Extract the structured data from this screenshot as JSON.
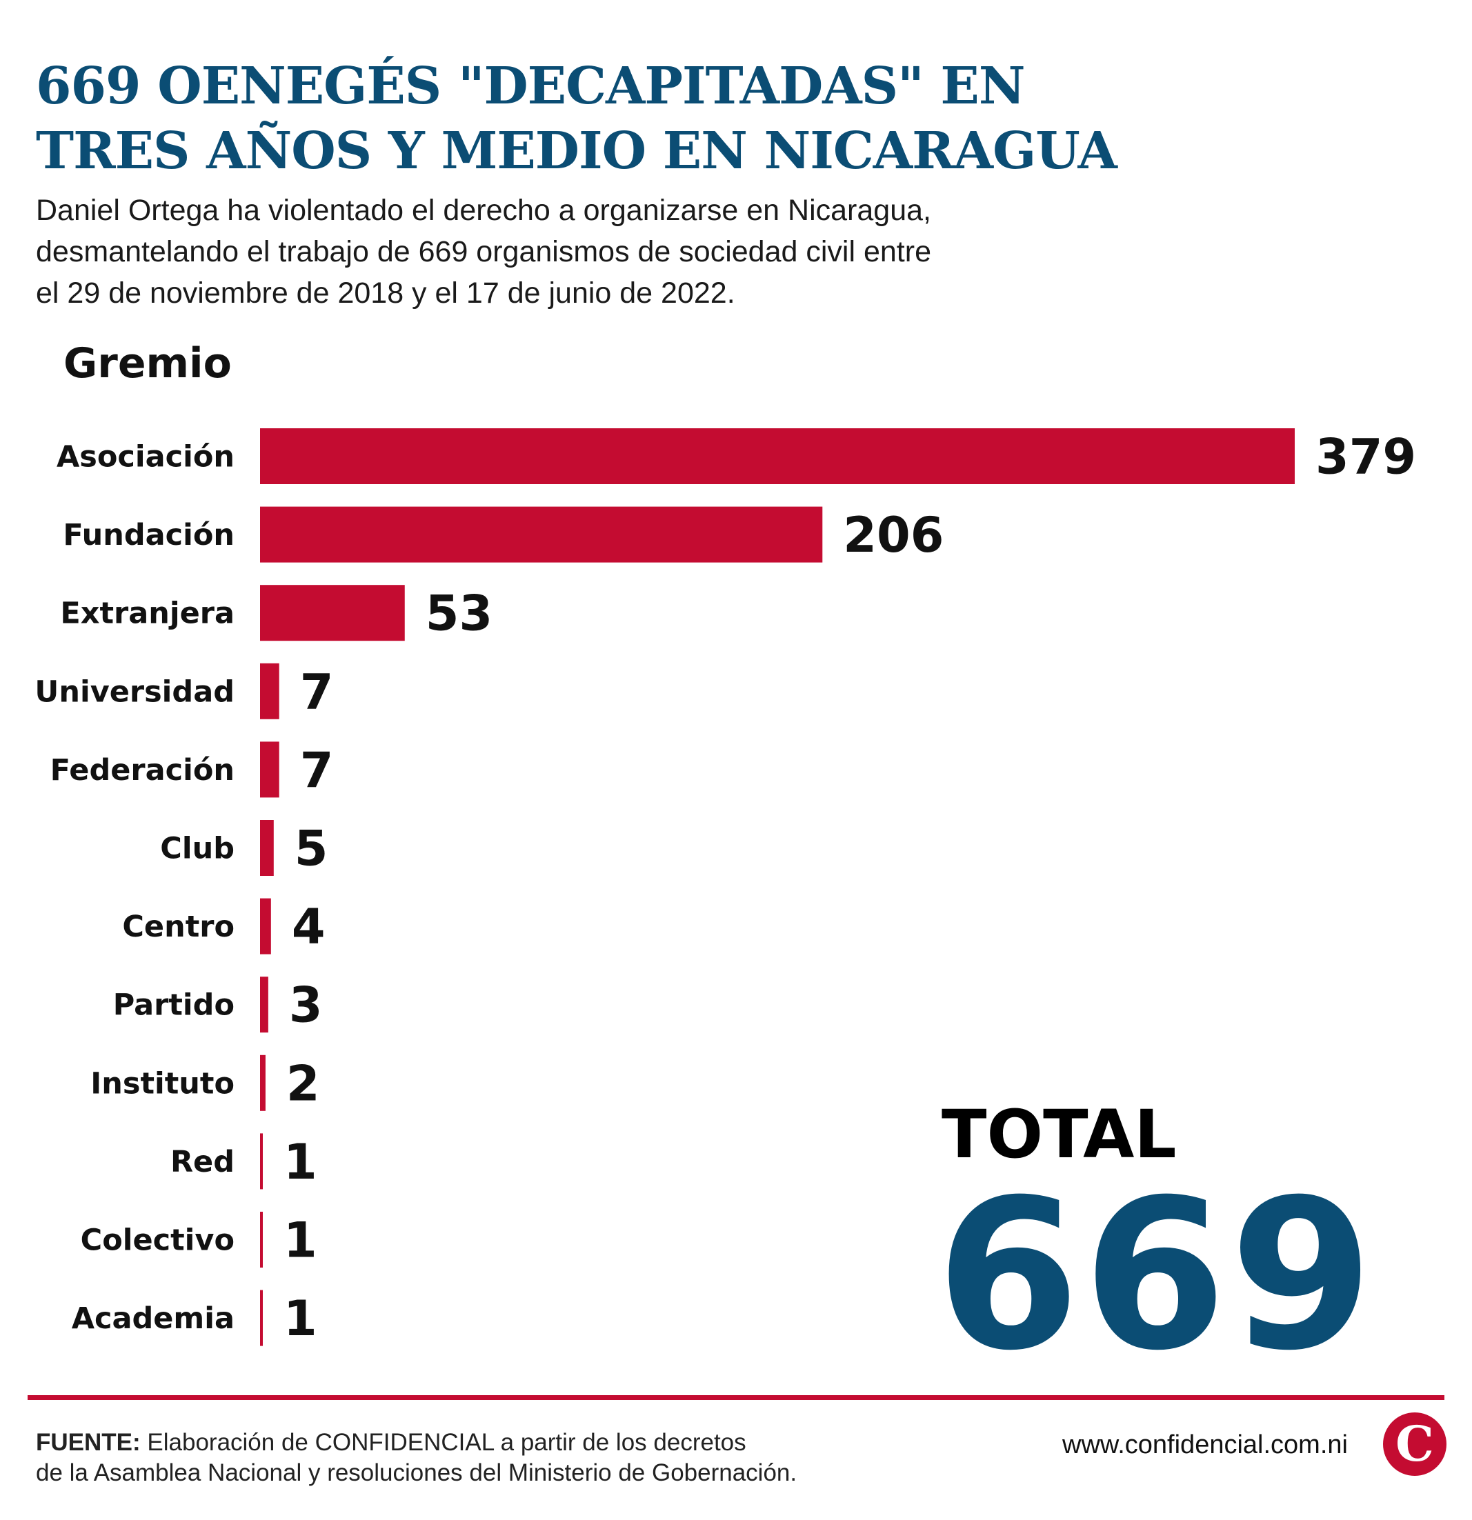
{
  "header": {
    "title_line1": "669 OENEGÉS \"DECAPITADAS\" EN",
    "title_line2": "TRES AÑOS Y MEDIO EN NICARAGUA",
    "subtitle_line1": "Daniel Ortega ha violentado el derecho a organizarse en Nicaragua,",
    "subtitle_line2": "desmantelando el trabajo de 669 organismos de sociedad civil entre",
    "subtitle_line3": "el 29 de noviembre de 2018 y el 17 de junio de 2022."
  },
  "chart_data": {
    "type": "bar",
    "orientation": "horizontal",
    "category_header": "Gremio",
    "categories": [
      "Asociación",
      "Fundación",
      "Extranjera",
      "Universidad",
      "Federación",
      "Club",
      "Centro",
      "Partido",
      "Instituto",
      "Red",
      "Colectivo",
      "Academia"
    ],
    "values": [
      379,
      206,
      53,
      7,
      7,
      5,
      4,
      3,
      2,
      1,
      1,
      1
    ],
    "value_labels": [
      "379",
      "206",
      "53",
      "7",
      "7",
      "5",
      "4",
      "3",
      "2",
      "1",
      "1",
      "1"
    ],
    "xlim": [
      0,
      379
    ],
    "grid": false,
    "bar_color": "#c40c31"
  },
  "total": {
    "label": "TOTAL",
    "value": "669"
  },
  "footer": {
    "source_label": "FUENTE:",
    "source_text_line1": "Elaboración de CONFIDENCIAL a partir de los decretos",
    "source_text_line2": "de la Asamblea Nacional y resoluciones del Ministerio de Gobernación.",
    "website": "www.confidencial.com.ni",
    "logo_letter": "C"
  },
  "colors": {
    "title": "#0b4d74",
    "accent_red": "#c40c31",
    "total_value": "#0b4d74"
  }
}
